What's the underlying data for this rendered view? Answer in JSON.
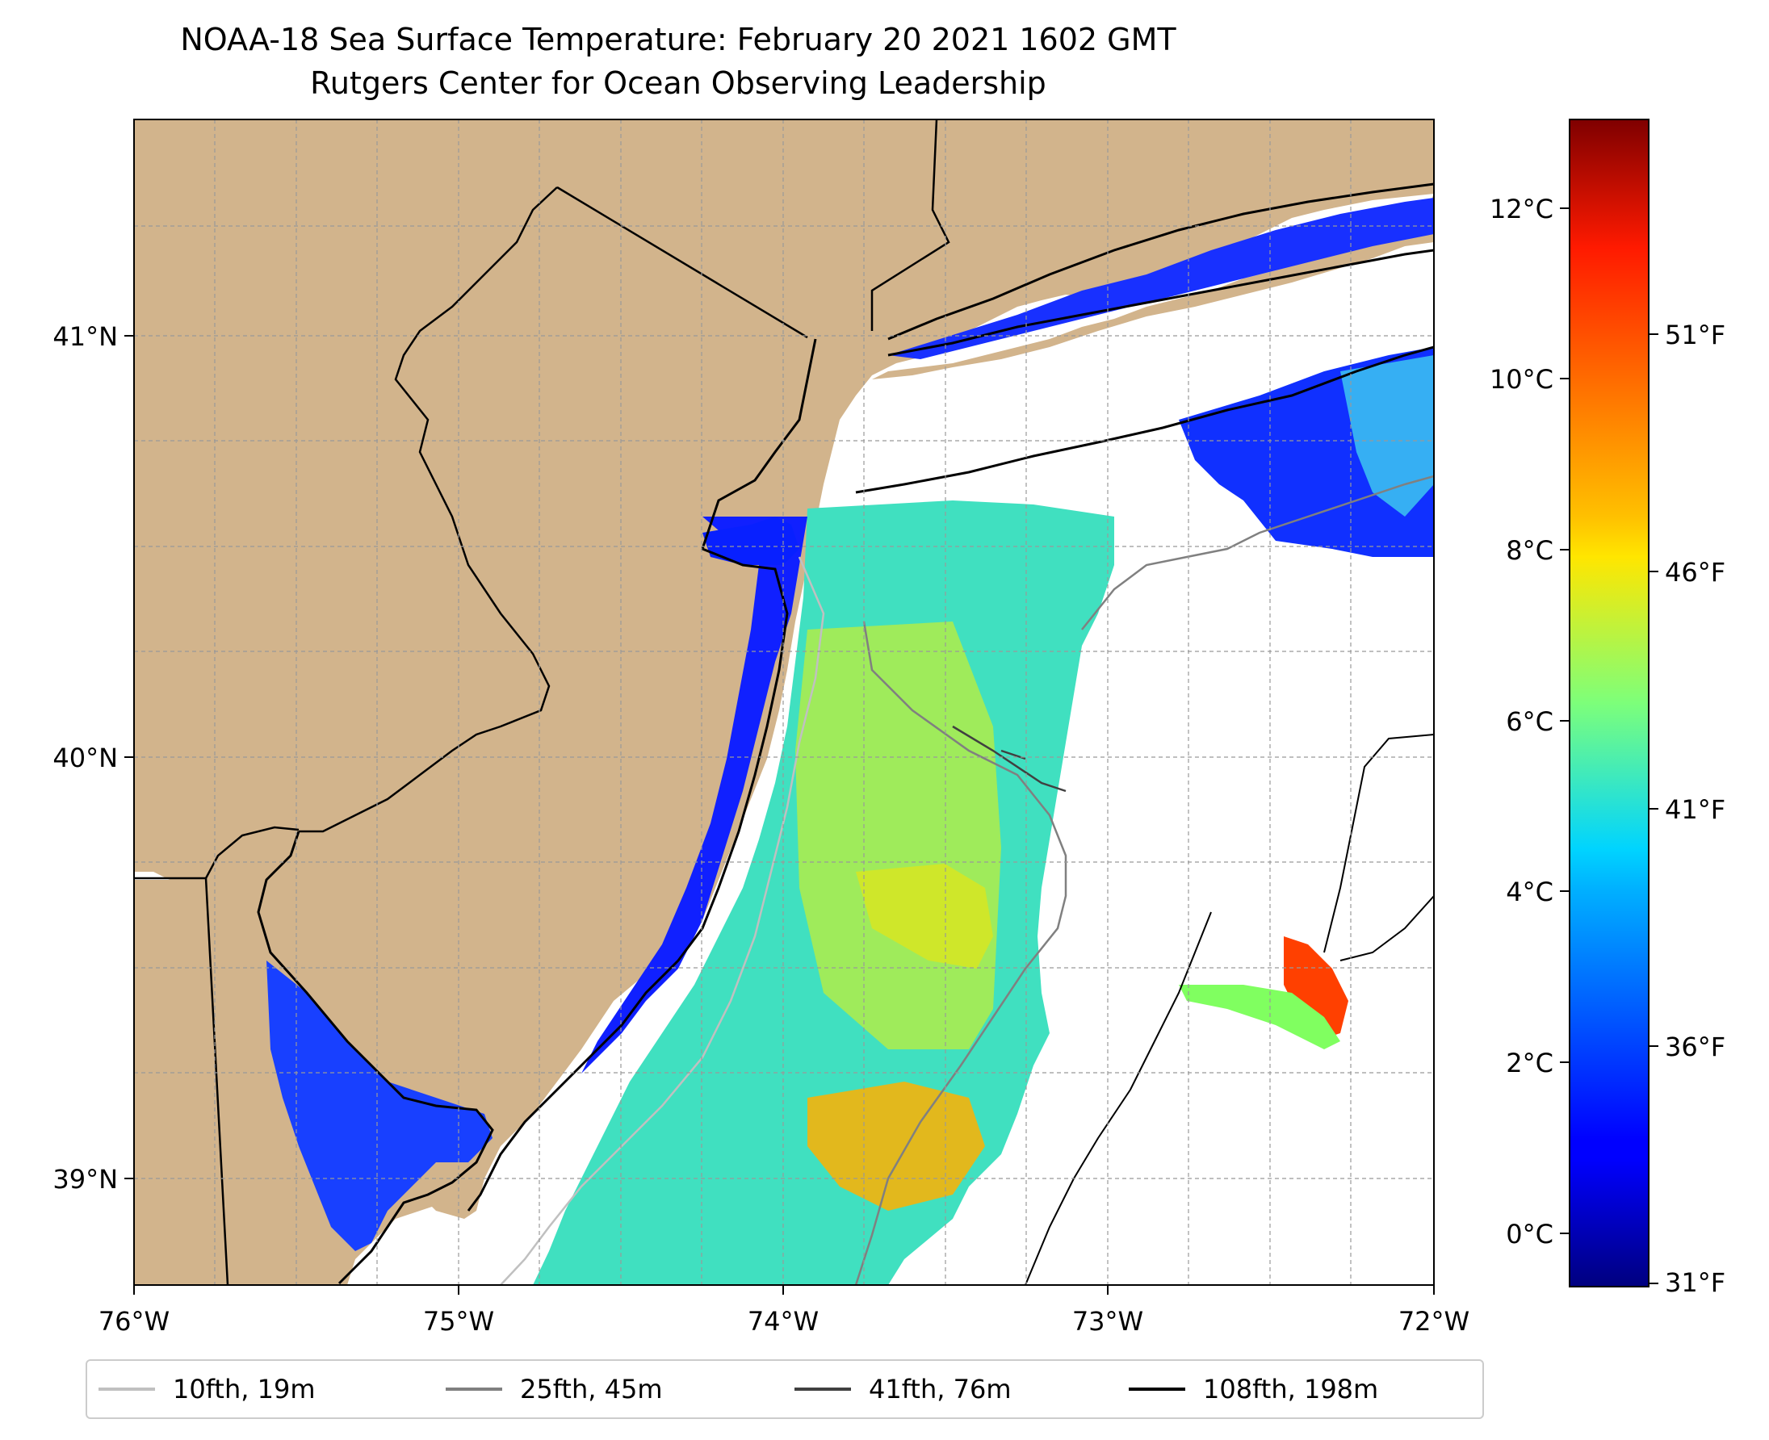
{
  "header": {
    "title": "NOAA-18 Sea Surface Temperature: February 20 2021 1602 GMT",
    "subtitle": "Rutgers Center for Ocean Observing Leadership"
  },
  "map": {
    "type": "sea-surface-temperature map",
    "lon_range": [
      -76,
      -72
    ],
    "lat_range": [
      38.75,
      41.52
    ],
    "lon_ticks": [
      "76°W",
      "75°W",
      "74°W",
      "73°W",
      "72°W"
    ],
    "lat_ticks": [
      "41°N",
      "40°N",
      "39°N"
    ],
    "land_color": "#d2b48c",
    "no_data_color": "#ffffff",
    "grid": true
  },
  "colorbar": {
    "colormap": "jet",
    "celsius_ticks": [
      "12°C",
      "10°C",
      "8°C",
      "6°C",
      "4°C",
      "2°C",
      "0°C"
    ],
    "fahrenheit_ticks": [
      "51°F",
      "46°F",
      "41°F",
      "36°F",
      "31°F"
    ]
  },
  "legend": {
    "position": "bottom",
    "items": [
      {
        "label": "10fth, 19m",
        "color": "#c0c0c0"
      },
      {
        "label": "25fth, 45m",
        "color": "#808080"
      },
      {
        "label": "41fth, 76m",
        "color": "#404040"
      },
      {
        "label": "108fth, 198m",
        "color": "#000000"
      }
    ]
  }
}
